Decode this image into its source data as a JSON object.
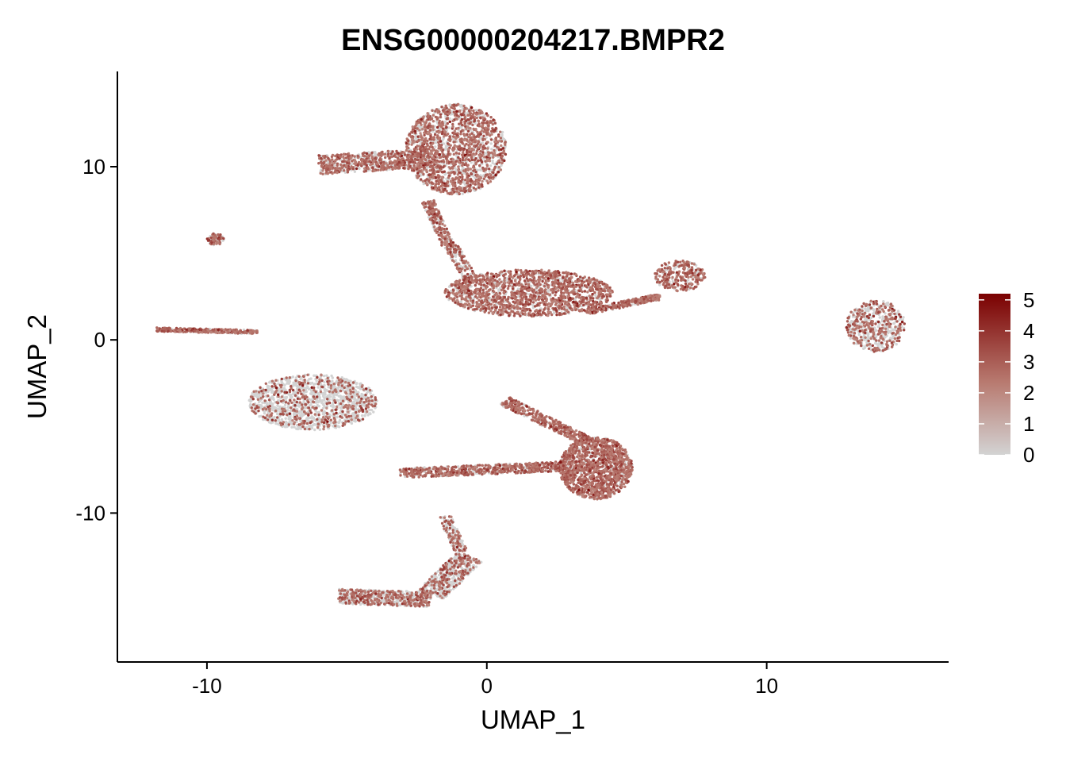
{
  "chart_data": {
    "type": "scatter",
    "title": "ENSG00000204217.BMPR2",
    "xlabel": "UMAP_1",
    "ylabel": "UMAP_2",
    "xlim": [
      -13.2,
      16.5
    ],
    "ylim": [
      -18.6,
      15.5
    ],
    "x_ticks": [
      -10,
      0,
      10
    ],
    "y_ticks": [
      10,
      0,
      -10
    ],
    "x_tick_labels": [
      "-10",
      "0",
      "10"
    ],
    "y_tick_labels": [
      "10",
      "0",
      "-10"
    ],
    "grid": false,
    "legend": {
      "position": "right",
      "type": "colorbar",
      "min": 0,
      "max": 5.2,
      "ticks": [
        5,
        4,
        3,
        2,
        1,
        0
      ],
      "tick_labels": [
        "5",
        "4",
        "3",
        "2",
        "1",
        "0"
      ],
      "low_color": "#d3d3d3",
      "high_color": "#7a0000"
    },
    "clusters": [
      {
        "name": "top-upper",
        "shape": "ellipse",
        "center": [
          -1.1,
          11.0
        ],
        "radius": [
          1.8,
          2.6
        ],
        "count": 1800,
        "expr_prob": 0.65
      },
      {
        "name": "top-left-wing",
        "shape": "segment",
        "from": [
          -6.0,
          10.1
        ],
        "to": [
          -2.0,
          10.5
        ],
        "width": 1.1,
        "count": 700,
        "expr_prob": 0.65
      },
      {
        "name": "top-stalk",
        "shape": "segment",
        "from": [
          -2.1,
          8.0
        ],
        "to": [
          -1.4,
          5.5
        ],
        "width": 0.45,
        "count": 220,
        "expr_prob": 0.55
      },
      {
        "name": "stalk-lower",
        "shape": "segment",
        "from": [
          -1.3,
          5.5
        ],
        "to": [
          -0.5,
          3.3
        ],
        "width": 0.5,
        "count": 180,
        "expr_prob": 0.55
      },
      {
        "name": "center-mid",
        "shape": "ellipse",
        "center": [
          1.5,
          2.7
        ],
        "radius": [
          3.0,
          1.35
        ],
        "count": 1700,
        "expr_prob": 0.75
      },
      {
        "name": "mid-arm",
        "shape": "segment",
        "from": [
          3.5,
          1.6
        ],
        "to": [
          6.2,
          2.5
        ],
        "width": 0.35,
        "count": 260,
        "expr_prob": 0.75
      },
      {
        "name": "mid-arm-end",
        "shape": "ellipse",
        "center": [
          6.9,
          3.7
        ],
        "radius": [
          0.9,
          0.9
        ],
        "count": 280,
        "expr_prob": 0.75
      },
      {
        "name": "right-blob",
        "shape": "ellipse",
        "center": [
          13.9,
          0.8
        ],
        "radius": [
          1.05,
          1.5
        ],
        "count": 550,
        "expr_prob": 0.5
      },
      {
        "name": "far-left-small",
        "shape": "ellipse",
        "center": [
          -9.7,
          5.8
        ],
        "radius": [
          0.3,
          0.35
        ],
        "count": 80,
        "expr_prob": 0.6
      },
      {
        "name": "left-strip",
        "shape": "segment",
        "from": [
          -11.8,
          0.6
        ],
        "to": [
          -8.2,
          0.45
        ],
        "width": 0.22,
        "count": 300,
        "expr_prob": 0.85
      },
      {
        "name": "left-lower",
        "shape": "ellipse",
        "center": [
          -6.2,
          -3.6
        ],
        "radius": [
          2.3,
          1.6
        ],
        "count": 1400,
        "expr_prob": 0.25
      },
      {
        "name": "bottom-right",
        "shape": "ellipse",
        "center": [
          3.9,
          -7.4
        ],
        "radius": [
          1.3,
          1.8
        ],
        "count": 1400,
        "expr_prob": 0.85
      },
      {
        "name": "bottom-upper-arm",
        "shape": "segment",
        "from": [
          0.6,
          -3.5
        ],
        "to": [
          3.5,
          -5.8
        ],
        "width": 0.55,
        "count": 350,
        "expr_prob": 0.8
      },
      {
        "name": "bottom-left-arm",
        "shape": "segment",
        "from": [
          -3.1,
          -7.7
        ],
        "to": [
          2.8,
          -7.3
        ],
        "width": 0.55,
        "count": 650,
        "expr_prob": 0.75
      },
      {
        "name": "lower-curve-a",
        "shape": "segment",
        "from": [
          -5.3,
          -14.8
        ],
        "to": [
          -2.0,
          -15.0
        ],
        "width": 0.85,
        "count": 600,
        "expr_prob": 0.4
      },
      {
        "name": "lower-curve-b",
        "shape": "segment",
        "from": [
          -2.0,
          -14.7
        ],
        "to": [
          -0.6,
          -12.5
        ],
        "width": 1.05,
        "count": 520,
        "expr_prob": 0.35
      },
      {
        "name": "lower-curve-c",
        "shape": "segment",
        "from": [
          -0.9,
          -12.3
        ],
        "to": [
          -1.5,
          -10.2
        ],
        "width": 0.45,
        "count": 150,
        "expr_prob": 0.35
      }
    ]
  }
}
